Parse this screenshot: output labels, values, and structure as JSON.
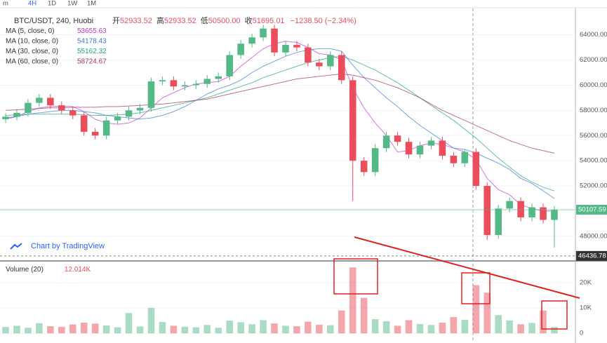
{
  "toolbar": [
    "m",
    "4H",
    "1D",
    "1W",
    "1M"
  ],
  "chart_data": {
    "type": "candlestick",
    "title": "BTC/USDT, 240, Huobi",
    "ohlc_header": [
      {
        "label": "开",
        "value": "52933.52"
      },
      {
        "label": "高",
        "value": "52933.52"
      },
      {
        "label": "低",
        "value": "50500.00"
      },
      {
        "label": "收",
        "value": "51695.01"
      }
    ],
    "change": "−1238.50 (−2.34%)",
    "watermark": "Chart by TradingView",
    "colors": {
      "up": "#53b987",
      "down": "#eb4d5c"
    },
    "open": [
      57300,
      57500,
      57800,
      58600,
      59000,
      58400,
      58000,
      57600,
      56300,
      56000,
      57200,
      57500,
      58000,
      58200,
      60300,
      60400,
      59900,
      60000,
      60100,
      60500,
      60700,
      62400,
      63300,
      63800,
      64500,
      62600,
      63200,
      63000,
      61800,
      61500,
      62400,
      60400,
      54000,
      53100,
      55000,
      56000,
      55500,
      54500,
      55200,
      55600,
      54400,
      53800,
      54700,
      52000,
      48100,
      50200,
      50800,
      49500,
      50300,
      49300
    ],
    "high": [
      57800,
      58100,
      58900,
      59300,
      59300,
      58700,
      58300,
      57900,
      56600,
      57500,
      57800,
      58300,
      58500,
      60600,
      60700,
      60700,
      60300,
      60400,
      60800,
      61000,
      62700,
      63600,
      64100,
      64800,
      64800,
      63500,
      63500,
      63300,
      62100,
      62700,
      62700,
      60700,
      54300,
      55300,
      56300,
      56300,
      55800,
      55500,
      55900,
      55900,
      54700,
      54900,
      55000,
      52300,
      50500,
      51100,
      51100,
      50600,
      50600,
      50400
    ],
    "low": [
      57000,
      57200,
      57500,
      58300,
      58100,
      57700,
      57300,
      56000,
      55700,
      55700,
      56900,
      57200,
      57700,
      57900,
      60000,
      59600,
      59600,
      59700,
      59800,
      60200,
      60400,
      62100,
      63000,
      63500,
      62300,
      62300,
      62700,
      61500,
      61200,
      61200,
      60100,
      50800,
      52800,
      52800,
      54700,
      55200,
      54200,
      54200,
      54900,
      54100,
      53500,
      53500,
      51700,
      47700,
      47800,
      49900,
      49200,
      49200,
      49000,
      47100
    ],
    "close": [
      57500,
      57800,
      58600,
      59000,
      58400,
      58000,
      57600,
      56300,
      56000,
      57200,
      57500,
      58000,
      58200,
      60300,
      60400,
      59900,
      60000,
      60100,
      60500,
      60700,
      62400,
      63300,
      63800,
      64500,
      62600,
      63200,
      63000,
      61800,
      61500,
      62400,
      60400,
      54000,
      53100,
      55000,
      56000,
      55500,
      54500,
      55200,
      55600,
      54400,
      53800,
      54700,
      52000,
      48100,
      50200,
      50800,
      49500,
      50300,
      49300,
      50100
    ],
    "volume": [
      2500,
      3000,
      2200,
      4000,
      2800,
      2600,
      3500,
      4200,
      3800,
      3100,
      2400,
      8000,
      2700,
      10000,
      4500,
      3000,
      2600,
      2400,
      3300,
      2200,
      5000,
      4400,
      3600,
      5200,
      3900,
      3000,
      2800,
      4600,
      3400,
      3200,
      9000,
      26000,
      14000,
      5600,
      4800,
      3000,
      5200,
      3700,
      3300,
      4200,
      6400,
      5300,
      19000,
      16000,
      7200,
      5100,
      3600,
      4100,
      9000,
      2500
    ],
    "series": [
      {
        "name": "MA (5, close, 0)",
        "value_label": "53655.63",
        "color": "#c23bd4",
        "values": [
          57300,
          57500,
          57900,
          58200,
          58300,
          58350,
          58300,
          57900,
          57300,
          57000,
          56900,
          57000,
          57400,
          58200,
          59000,
          59400,
          59800,
          60100,
          60200,
          60300,
          60700,
          61500,
          62200,
          62900,
          63300,
          63500,
          63400,
          63000,
          62500,
          62400,
          62000,
          59800,
          58200,
          57000,
          56000,
          54700,
          54800,
          55200,
          55400,
          55300,
          55000,
          54700,
          54100,
          52600,
          51700,
          51300,
          50500,
          50200,
          50000,
          50000
        ]
      },
      {
        "name": "MA (10, close, 0)",
        "value_label": "54178.43",
        "color": "#3c78d8",
        "values": [
          57400,
          57500,
          57700,
          57800,
          57900,
          58000,
          58000,
          57900,
          57800,
          57600,
          57500,
          57400,
          57300,
          57400,
          57600,
          57900,
          58300,
          58800,
          59300,
          59700,
          60000,
          60400,
          61000,
          61500,
          61900,
          62300,
          62600,
          62800,
          62900,
          62900,
          62700,
          61600,
          60600,
          59800,
          59000,
          58300,
          57500,
          56800,
          56200,
          55600,
          55000,
          54900,
          54600,
          54200,
          53800,
          53300,
          52600,
          52200,
          51600,
          51000
        ]
      },
      {
        "name": "MA (30, close, 0)",
        "value_label": "55162.32",
        "color": "#21a67a",
        "values": [
          57600,
          57650,
          57700,
          57700,
          57700,
          57700,
          57700,
          57650,
          57600,
          57600,
          57650,
          57700,
          57800,
          58000,
          58200,
          58400,
          58600,
          58800,
          59000,
          59300,
          59600,
          59900,
          60200,
          60600,
          60900,
          61200,
          61500,
          61800,
          62000,
          62200,
          62300,
          62000,
          61600,
          61200,
          60700,
          60200,
          59600,
          59000,
          58400,
          57800,
          57200,
          56500,
          55800,
          55000,
          54200,
          53500,
          52800,
          52300,
          51900,
          51600
        ]
      },
      {
        "name": "MA (60, close, 0)",
        "value_label": "58724.67",
        "color": "#a8325e",
        "values": [
          58000,
          58050,
          58100,
          58150,
          58200,
          58200,
          58250,
          58250,
          58250,
          58300,
          58300,
          58350,
          58400,
          58450,
          58500,
          58600,
          58700,
          58800,
          58900,
          59100,
          59300,
          59500,
          59700,
          59900,
          60100,
          60300,
          60500,
          60600,
          60700,
          60800,
          60900,
          60800,
          60600,
          60400,
          60100,
          59800,
          59400,
          59000,
          58500,
          58000,
          57600,
          57200,
          56800,
          56400,
          56000,
          55600,
          55300,
          55000,
          54800,
          54600
        ]
      }
    ],
    "ylim": [
      46150,
      66100
    ],
    "yticks": [
      {
        "value": 48000,
        "label": "48000.00"
      },
      {
        "value": 50000,
        "label": "50000.00"
      },
      {
        "value": 52000,
        "label": "52000.00"
      },
      {
        "value": 54000,
        "label": "54000.00"
      },
      {
        "value": 56000,
        "label": "56000.00"
      },
      {
        "value": 58000,
        "label": "58000.00"
      },
      {
        "value": 60000,
        "label": "60000.00"
      },
      {
        "value": 62000,
        "label": "62000.00"
      },
      {
        "value": 64000,
        "label": "64000.00"
      }
    ],
    "price_lines": [
      {
        "value": 50107.59,
        "label": "50107.59",
        "color": "#53b987"
      },
      {
        "value": 46436.78,
        "label": "46436.78",
        "color": "#333333"
      }
    ],
    "volume_title": "Volume (20)",
    "volume_value": "12.014K",
    "volume_ylim": [
      -2700,
      27700
    ],
    "volume_yticks": [
      0,
      {
        "value": 10000,
        "label": "10K"
      },
      {
        "value": 20000,
        "label": "20K"
      }
    ]
  }
}
